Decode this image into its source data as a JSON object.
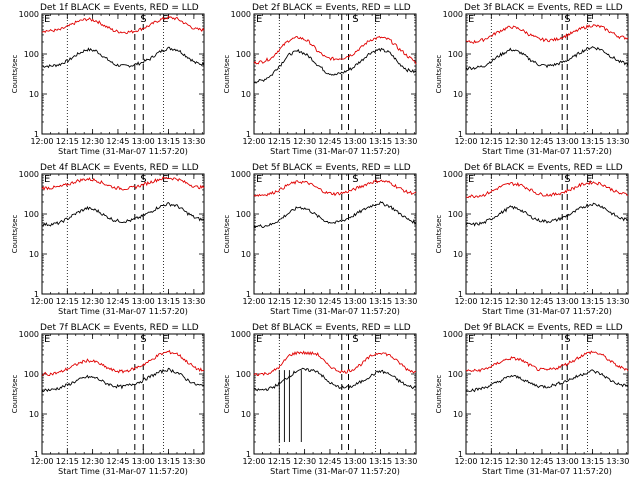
{
  "chart_data": [
    {
      "type": "line",
      "title": "Det 1f BLACK = Events, RED = LLD",
      "ylabel": "Counts/sec",
      "xlabel": "Start Time (31-Mar-07 11:57:20)",
      "markers": [
        {
          "label": "E",
          "time": "12:00"
        },
        {
          "label": "S",
          "time": "12:57"
        },
        {
          "label": "E",
          "time": "13:10"
        }
      ],
      "bands": [
        {
          "time": "12:55"
        },
        {
          "time": "13:00"
        }
      ],
      "series": [
        {
          "name": "Events",
          "color": "#000000",
          "values": [
            50,
            50,
            55,
            70,
            100,
            130,
            120,
            80,
            55,
            50,
            52,
            60,
            75,
            110,
            140,
            130,
            90,
            60,
            55
          ]
        },
        {
          "name": "LLD",
          "color": "#e00000",
          "values": [
            380,
            380,
            400,
            500,
            650,
            750,
            680,
            500,
            380,
            350,
            360,
            420,
            520,
            700,
            820,
            760,
            560,
            420,
            400
          ]
        }
      ]
    },
    {
      "type": "line",
      "title": "Det 2f BLACK = Events, RED = LLD",
      "ylabel": "Counts/sec",
      "xlabel": "Start Time (31-Mar-07 11:57:20)",
      "markers": [
        {
          "label": "E",
          "time": "12:00"
        },
        {
          "label": "S",
          "time": "12:57"
        },
        {
          "label": "E",
          "time": "13:10"
        }
      ],
      "bands": [
        {
          "time": "12:52"
        },
        {
          "time": "12:56"
        }
      ],
      "series": [
        {
          "name": "Events",
          "color": "#000000",
          "values": [
            20,
            22,
            30,
            55,
            100,
            120,
            90,
            55,
            35,
            30,
            35,
            45,
            70,
            110,
            130,
            110,
            60,
            40,
            35
          ]
        },
        {
          "name": "LLD",
          "color": "#e00000",
          "values": [
            60,
            65,
            80,
            140,
            230,
            260,
            210,
            120,
            80,
            75,
            80,
            100,
            150,
            230,
            260,
            230,
            140,
            90,
            60
          ]
        }
      ]
    },
    {
      "type": "line",
      "title": "Det 3f BLACK = Events, RED = LLD",
      "ylabel": "Counts/sec",
      "xlabel": "Start Time (31-Mar-07 11:57:20)",
      "markers": [
        {
          "label": "E",
          "time": "12:00"
        },
        {
          "label": "S",
          "time": "12:57"
        },
        {
          "label": "E",
          "time": "13:10"
        }
      ],
      "bands": [
        {
          "time": "12:57"
        },
        {
          "time": "13:00"
        }
      ],
      "series": [
        {
          "name": "Events",
          "color": "#000000",
          "values": [
            45,
            45,
            50,
            70,
            100,
            130,
            110,
            75,
            55,
            50,
            55,
            65,
            85,
            120,
            150,
            130,
            90,
            65,
            55
          ]
        },
        {
          "name": "LLD",
          "color": "#e00000",
          "values": [
            200,
            200,
            230,
            300,
            400,
            480,
            420,
            310,
            240,
            220,
            230,
            280,
            350,
            450,
            520,
            480,
            360,
            270,
            250
          ]
        }
      ]
    },
    {
      "type": "line",
      "title": "Det 4f BLACK = Events, RED = LLD",
      "ylabel": "Counts/sec",
      "xlabel": "Start Time (31-Mar-07 11:57:20)",
      "markers": [
        {
          "label": "E",
          "time": "12:00"
        },
        {
          "label": "S",
          "time": "12:57"
        },
        {
          "label": "E",
          "time": "13:10"
        }
      ],
      "bands": [
        {
          "time": "12:55"
        },
        {
          "time": "13:00"
        }
      ],
      "series": [
        {
          "name": "Events",
          "color": "#000000",
          "values": [
            55,
            55,
            60,
            80,
            110,
            140,
            125,
            90,
            70,
            65,
            70,
            85,
            110,
            150,
            180,
            160,
            110,
            80,
            70
          ]
        },
        {
          "name": "LLD",
          "color": "#e00000",
          "values": [
            450,
            450,
            480,
            560,
            680,
            750,
            700,
            560,
            460,
            430,
            450,
            520,
            620,
            740,
            800,
            760,
            600,
            480,
            460
          ]
        }
      ]
    },
    {
      "type": "line",
      "title": "Det 5f BLACK = Events, RED = LLD",
      "ylabel": "Counts/sec",
      "xlabel": "Start Time (31-Mar-07 11:57:20)",
      "markers": [
        {
          "label": "E",
          "time": "12:00"
        },
        {
          "label": "S",
          "time": "12:57"
        },
        {
          "label": "E",
          "time": "13:10"
        }
      ],
      "bands": [
        {
          "time": "12:52"
        },
        {
          "time": "12:56"
        }
      ],
      "series": [
        {
          "name": "Events",
          "color": "#000000",
          "values": [
            50,
            50,
            55,
            75,
            110,
            150,
            130,
            90,
            65,
            60,
            70,
            90,
            120,
            160,
            190,
            160,
            110,
            75,
            60
          ]
        },
        {
          "name": "LLD",
          "color": "#e00000",
          "values": [
            300,
            300,
            330,
            420,
            560,
            650,
            600,
            450,
            340,
            320,
            340,
            400,
            500,
            620,
            680,
            620,
            460,
            350,
            330
          ]
        }
      ]
    },
    {
      "type": "line",
      "title": "Det 6f BLACK = Events, RED = LLD",
      "ylabel": "Counts/sec",
      "xlabel": "Start Time (31-Mar-07 11:57:20)",
      "markers": [
        {
          "label": "E",
          "time": "12:00"
        },
        {
          "label": "S",
          "time": "12:57"
        },
        {
          "label": "E",
          "time": "13:10"
        }
      ],
      "bands": [
        {
          "time": "12:57"
        },
        {
          "time": "13:00"
        }
      ],
      "series": [
        {
          "name": "Events",
          "color": "#000000",
          "values": [
            55,
            55,
            60,
            80,
            110,
            150,
            130,
            90,
            70,
            65,
            70,
            85,
            110,
            150,
            180,
            160,
            110,
            80,
            70
          ]
        },
        {
          "name": "LLD",
          "color": "#e00000",
          "values": [
            280,
            280,
            300,
            380,
            500,
            580,
            540,
            420,
            320,
            300,
            310,
            360,
            450,
            560,
            620,
            570,
            430,
            330,
            310
          ]
        }
      ]
    },
    {
      "type": "line",
      "title": "Det 7f BLACK = Events, RED = LLD",
      "ylabel": "Counts/sec",
      "xlabel": "Start Time (31-Mar-07 11:57:20)",
      "markers": [
        {
          "label": "E",
          "time": "12:00"
        },
        {
          "label": "S",
          "time": "12:57"
        },
        {
          "label": "E",
          "time": "13:10"
        }
      ],
      "bands": [
        {
          "time": "12:55"
        },
        {
          "time": "13:00"
        }
      ],
      "series": [
        {
          "name": "Events",
          "color": "#000000",
          "values": [
            40,
            40,
            45,
            55,
            70,
            85,
            80,
            60,
            50,
            48,
            55,
            65,
            85,
            110,
            130,
            110,
            75,
            55,
            50
          ]
        },
        {
          "name": "LLD",
          "color": "#e00000",
          "values": [
            100,
            100,
            110,
            140,
            180,
            220,
            200,
            150,
            120,
            115,
            130,
            160,
            210,
            300,
            360,
            320,
            210,
            140,
            120
          ]
        }
      ]
    },
    {
      "type": "line",
      "title": "Det 8f BLACK = Events, RED = LLD",
      "ylabel": "Counts/sec",
      "xlabel": "Start Time (31-Mar-07 11:57:20)",
      "markers": [
        {
          "label": "E",
          "time": "12:00"
        },
        {
          "label": "S",
          "time": "12:57"
        },
        {
          "label": "E",
          "time": "13:10"
        }
      ],
      "bands": [
        {
          "time": "12:52"
        },
        {
          "time": "12:56"
        }
      ],
      "series": [
        {
          "name": "Events",
          "color": "#000000",
          "values": [
            40,
            40,
            45,
            60,
            90,
            130,
            125,
            120,
            70,
            50,
            45,
            50,
            65,
            90,
            120,
            100,
            70,
            50,
            45
          ]
        },
        {
          "name": "LLD",
          "color": "#e00000",
          "values": [
            100,
            100,
            110,
            160,
            300,
            350,
            330,
            320,
            180,
            130,
            110,
            130,
            180,
            280,
            350,
            300,
            200,
            130,
            110
          ]
        }
      ]
    },
    {
      "type": "line",
      "title": "Det 9f BLACK = Events, RED = LLD",
      "ylabel": "Counts/sec",
      "xlabel": "Start Time (31-Mar-07 11:57:20)",
      "markers": [
        {
          "label": "E",
          "time": "12:00"
        },
        {
          "label": "S",
          "time": "12:57"
        },
        {
          "label": "E",
          "time": "13:10"
        }
      ],
      "bands": [
        {
          "time": "12:57"
        },
        {
          "time": "13:00"
        }
      ],
      "series": [
        {
          "name": "Events",
          "color": "#000000",
          "values": [
            40,
            40,
            45,
            55,
            70,
            90,
            80,
            60,
            50,
            48,
            55,
            65,
            80,
            100,
            120,
            100,
            70,
            55,
            50
          ]
        },
        {
          "name": "LLD",
          "color": "#e00000",
          "values": [
            120,
            120,
            130,
            160,
            210,
            250,
            230,
            170,
            130,
            125,
            140,
            170,
            220,
            300,
            360,
            310,
            210,
            150,
            130
          ]
        }
      ]
    }
  ],
  "axes": {
    "x_ticks": [
      "12:00",
      "12:15",
      "12:30",
      "12:45",
      "13:00",
      "13:15",
      "13:30"
    ],
    "y_ticks": [
      "1",
      "10",
      "100",
      "1000"
    ],
    "x_range": [
      "12:00",
      "13:36"
    ],
    "y_range": [
      1,
      1000
    ],
    "y_scale": "log",
    "vlines_dotted": [
      "12:15",
      "13:12"
    ]
  },
  "dropouts": {
    "panel": 8,
    "start": "12:15",
    "end": "12:28",
    "min": 2
  }
}
